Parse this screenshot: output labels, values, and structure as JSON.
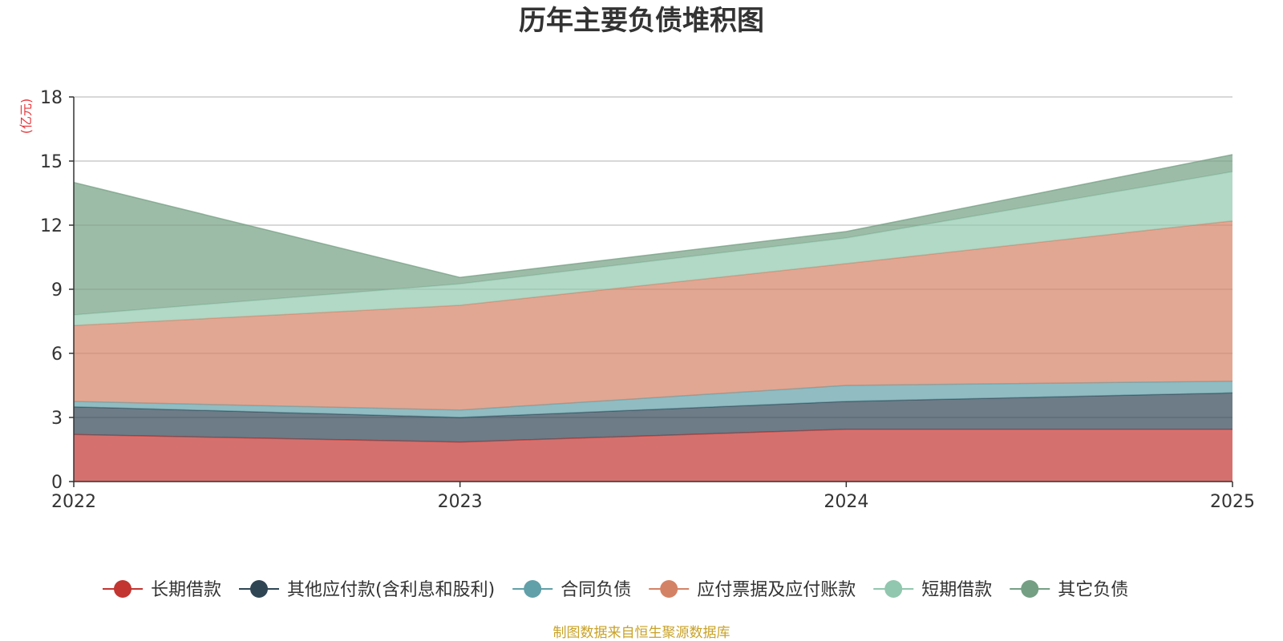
{
  "colors": {
    "series": [
      "#c23531",
      "#2f4554",
      "#61a0a8",
      "#d48265",
      "#91c7ae",
      "#749f83"
    ],
    "grid": "#cccccc",
    "axis": "#333333",
    "unit": "#e8363b",
    "source": "#c9a227"
  },
  "chart_data": {
    "type": "area",
    "stacked": true,
    "title": "历年主要负债堆积图",
    "unit_label": "(亿元)",
    "x": [
      "2022",
      "2023",
      "2024",
      "2025"
    ],
    "ylim": [
      0,
      18
    ],
    "yticks": [
      0,
      3,
      6,
      9,
      12,
      15,
      18
    ],
    "grid": true,
    "legend_position": "bottom",
    "series": [
      {
        "name": "长期借款",
        "values": [
          2.2,
          1.85,
          2.45,
          2.45
        ]
      },
      {
        "name": "其他应付款(含利息和股利)",
        "values": [
          1.3,
          1.15,
          1.3,
          1.7
        ]
      },
      {
        "name": "合同负债",
        "values": [
          0.25,
          0.35,
          0.75,
          0.55
        ]
      },
      {
        "name": "应付票据及应付账款",
        "values": [
          3.55,
          4.9,
          5.7,
          7.5
        ]
      },
      {
        "name": "短期借款",
        "values": [
          0.5,
          1.0,
          1.2,
          2.3
        ]
      },
      {
        "name": "其它负债",
        "values": [
          6.2,
          0.3,
          0.3,
          0.8
        ]
      }
    ]
  },
  "footer": {
    "source": "制图数据来自恒生聚源数据库"
  }
}
